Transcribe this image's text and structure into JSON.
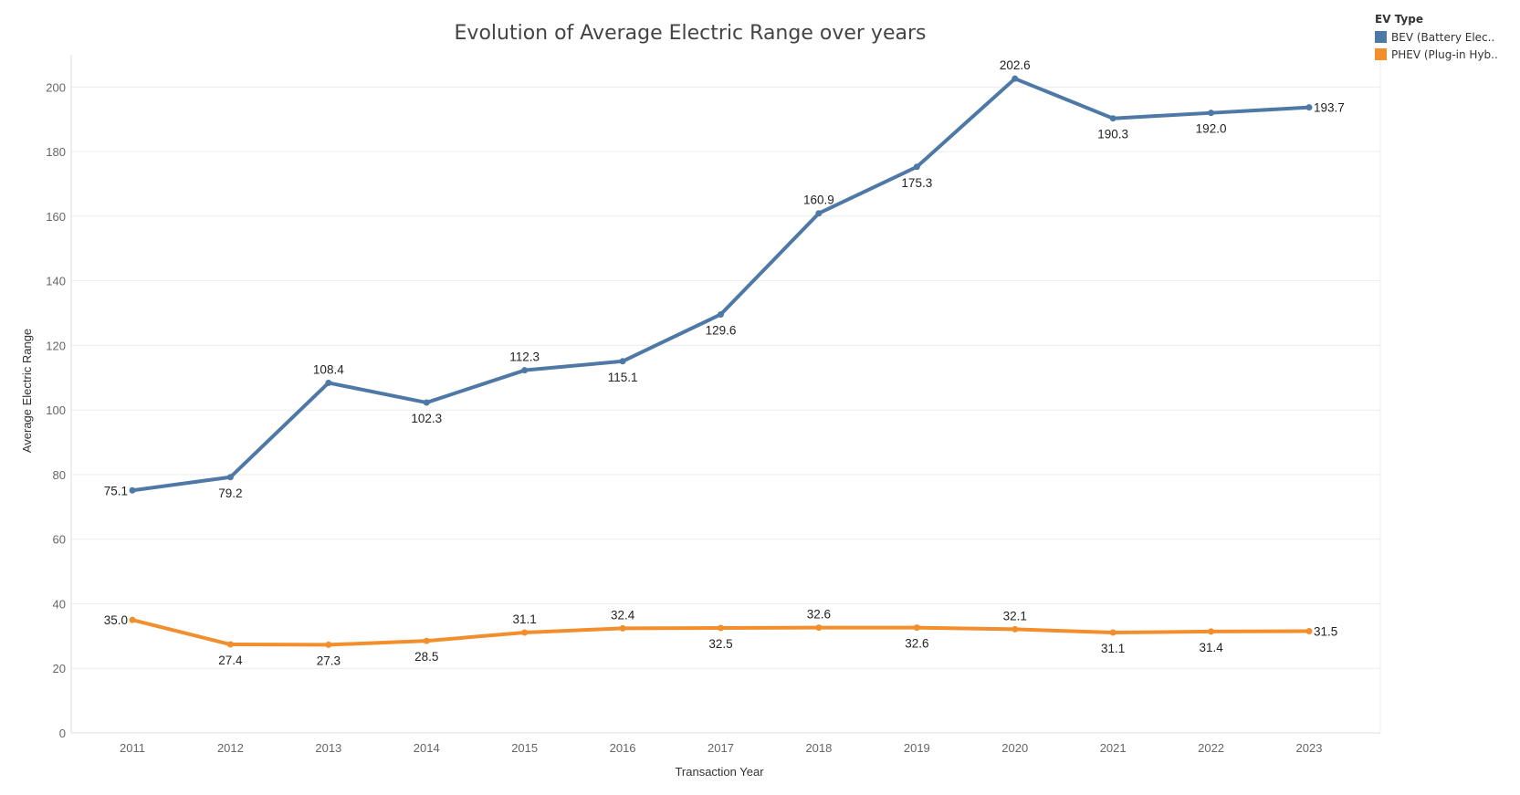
{
  "chart_data": {
    "type": "line",
    "title": "Evolution of Average Electric Range over years",
    "xlabel": "Transaction Year",
    "ylabel": "Average Electric Range",
    "ylim": [
      0,
      210
    ],
    "yticks": [
      0,
      20,
      40,
      60,
      80,
      100,
      120,
      140,
      160,
      180,
      200
    ],
    "grid": true,
    "legend_position": "top-right",
    "legend_title": "EV Type",
    "x": [
      2011,
      2012,
      2013,
      2014,
      2015,
      2016,
      2017,
      2018,
      2019,
      2020,
      2021,
      2022,
      2023
    ],
    "series": [
      {
        "name": "BEV (Battery Elec..",
        "color": "#4e79a7",
        "values": [
          75.1,
          79.2,
          108.4,
          102.3,
          112.3,
          115.1,
          129.6,
          160.9,
          175.3,
          202.6,
          190.3,
          192.0,
          193.7
        ],
        "labels": [
          "75.1",
          "79.2",
          "108.4",
          "102.3",
          "112.3",
          "115.1",
          "129.6",
          "160.9",
          "175.3",
          "202.6",
          "190.3",
          "192.0",
          "193.7"
        ]
      },
      {
        "name": "PHEV (Plug-in Hyb..",
        "color": "#f28e2b",
        "values": [
          35.0,
          27.4,
          27.3,
          28.5,
          31.1,
          32.4,
          32.5,
          32.6,
          32.6,
          32.1,
          31.1,
          31.4,
          31.5
        ],
        "labels": [
          "35.0",
          "27.4",
          "27.3",
          "28.5",
          "31.1",
          "32.4",
          "32.5",
          "32.6",
          "32.6",
          "32.1",
          "31.1",
          "31.4",
          "31.5"
        ]
      }
    ]
  }
}
